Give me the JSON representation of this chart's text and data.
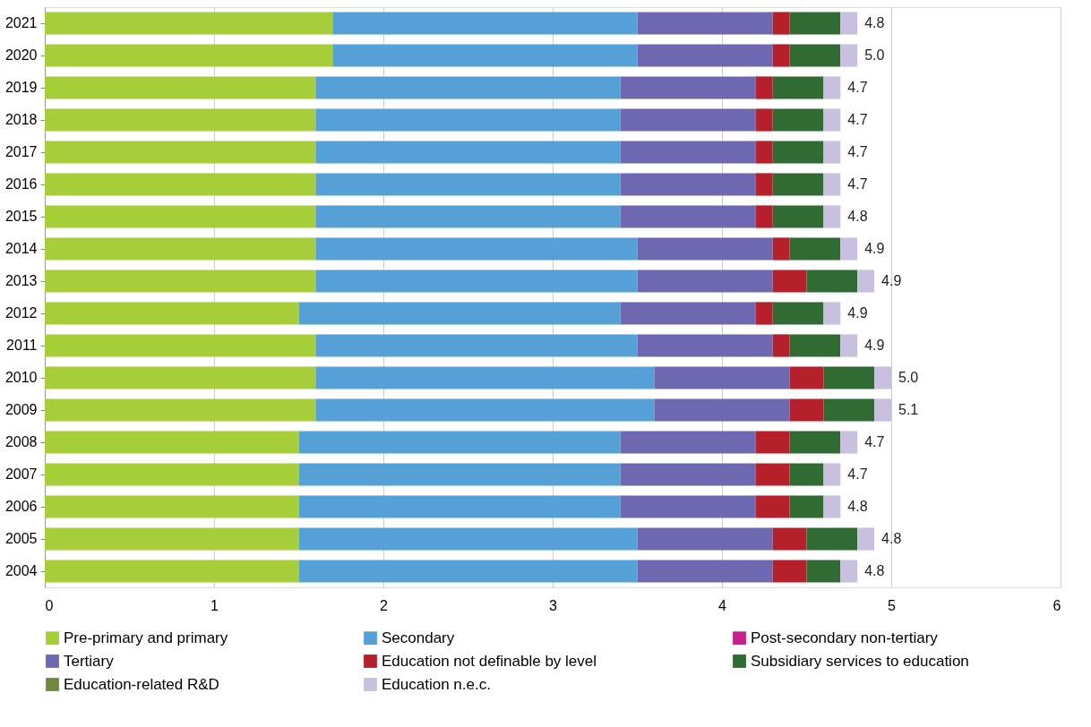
{
  "chart_data": {
    "type": "bar",
    "orientation": "horizontal",
    "stacked": true,
    "categories": [
      "2021",
      "2020",
      "2019",
      "2018",
      "2017",
      "2016",
      "2015",
      "2014",
      "2013",
      "2012",
      "2011",
      "2010",
      "2009",
      "2008",
      "2007",
      "2006",
      "2005",
      "2004"
    ],
    "series": [
      {
        "name": "Pre-primary and primary",
        "color": "#a6ce39",
        "values": [
          1.7,
          1.7,
          1.6,
          1.6,
          1.6,
          1.6,
          1.6,
          1.6,
          1.6,
          1.5,
          1.6,
          1.6,
          1.6,
          1.5,
          1.5,
          1.5,
          1.5,
          1.5
        ]
      },
      {
        "name": "Secondary",
        "color": "#56a0d8",
        "values": [
          1.8,
          1.8,
          1.8,
          1.8,
          1.8,
          1.8,
          1.8,
          1.9,
          1.9,
          1.9,
          1.9,
          2.0,
          2.0,
          1.9,
          1.9,
          1.9,
          2.0,
          2.0
        ]
      },
      {
        "name": "Post-secondary non-tertiary",
        "color": "#c5208c",
        "values": [
          0,
          0,
          0,
          0,
          0,
          0,
          0,
          0,
          0,
          0,
          0,
          0,
          0,
          0,
          0,
          0,
          0,
          0
        ]
      },
      {
        "name": "Tertiary",
        "color": "#6e68b0",
        "values": [
          0.8,
          0.8,
          0.8,
          0.8,
          0.8,
          0.8,
          0.8,
          0.8,
          0.8,
          0.8,
          0.8,
          0.8,
          0.8,
          0.8,
          0.8,
          0.8,
          0.8,
          0.8
        ]
      },
      {
        "name": "Education not definable by level",
        "color": "#b5202a",
        "values": [
          0.1,
          0.1,
          0.1,
          0.1,
          0.1,
          0.1,
          0.1,
          0.1,
          0.2,
          0.1,
          0.1,
          0.2,
          0.2,
          0.2,
          0.2,
          0.2,
          0.2,
          0.2
        ]
      },
      {
        "name": "Subsidiary services to education",
        "color": "#2f6b33",
        "values": [
          0.3,
          0.3,
          0.3,
          0.3,
          0.3,
          0.3,
          0.3,
          0.3,
          0.3,
          0.3,
          0.3,
          0.3,
          0.3,
          0.3,
          0.2,
          0.2,
          0.3,
          0.2
        ]
      },
      {
        "name": "Education-related R&D",
        "color": "#6f8a3c",
        "values": [
          0,
          0,
          0,
          0,
          0,
          0,
          0,
          0,
          0,
          0,
          0,
          0,
          0,
          0,
          0,
          0,
          0,
          0
        ]
      },
      {
        "name": "Education n.e.c.",
        "color": "#c9c0e0",
        "values": [
          0.1,
          0.1,
          0.1,
          0.1,
          0.1,
          0.1,
          0.1,
          0.1,
          0.1,
          0.1,
          0.1,
          0.1,
          0.1,
          0.1,
          0.1,
          0.1,
          0.1,
          0.1
        ]
      }
    ],
    "totals": [
      "4.8",
      "5.0",
      "4.7",
      "4.7",
      "4.7",
      "4.7",
      "4.8",
      "4.9",
      "4.9",
      "4.9",
      "4.9",
      "5.0",
      "5.1",
      "4.7",
      "4.7",
      "4.8",
      "4.8",
      "4.8"
    ],
    "xlim": [
      0,
      6
    ],
    "xticks": [
      0,
      1,
      2,
      3,
      4,
      5,
      6
    ],
    "grid": "x",
    "legend": "bottom"
  }
}
